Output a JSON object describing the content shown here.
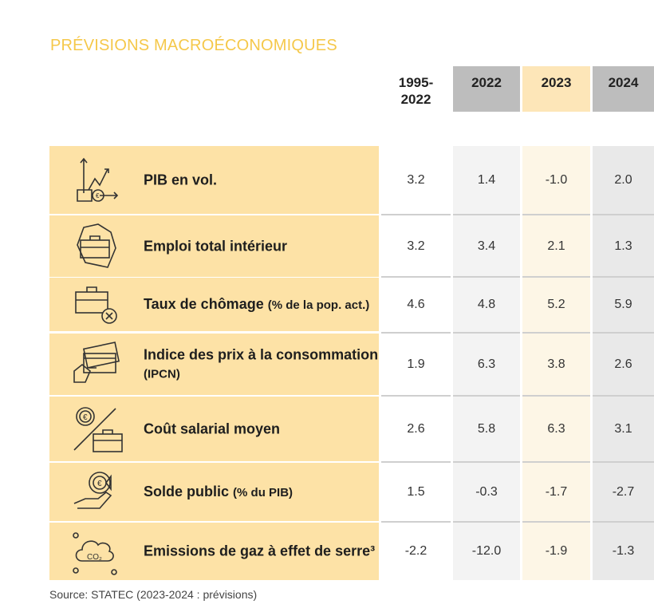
{
  "title": "PRÉVISIONS MACROÉCONOMIQUES",
  "columns": [
    "1995-\n2022",
    "2022",
    "2023",
    "2024"
  ],
  "rows": [
    {
      "icon": "growth-chart-coins-icon",
      "label": "PIB en vol.",
      "sub": "",
      "values": [
        "3.2",
        "1.4",
        "-1.0",
        "2.0"
      ]
    },
    {
      "icon": "briefcase-map-icon",
      "label": "Emploi total intérieur",
      "sub": "",
      "values": [
        "3.2",
        "3.4",
        "2.1",
        "1.3"
      ]
    },
    {
      "icon": "briefcase-cross-icon",
      "label": "Taux de chômage",
      "sub": "(% de la pop. act.)",
      "values": [
        "4.6",
        "4.8",
        "5.2",
        "5.9"
      ]
    },
    {
      "icon": "credit-card-hand-icon",
      "label": "Indice des prix à la consommation",
      "sub": "(IPCN)",
      "values": [
        "1.9",
        "6.3",
        "3.8",
        "2.6"
      ]
    },
    {
      "icon": "euro-briefcase-icon",
      "label": "Coût salarial moyen",
      "sub": "",
      "values": [
        "2.6",
        "5.8",
        "6.3",
        "3.1"
      ]
    },
    {
      "icon": "hand-euro-target-icon",
      "label": "Solde public",
      "sub": "(% du PIB)",
      "values": [
        "1.5",
        "-0.3",
        "-1.7",
        "-2.7"
      ]
    },
    {
      "icon": "co2-cloud-icon",
      "label": "Emissions de gaz à effet de serre³",
      "sub": "",
      "values": [
        "-2.2",
        "-12.0",
        "-1.9",
        "-1.3"
      ]
    }
  ],
  "source": "Source: STATEC (2023-2024 : prévisions)",
  "colors": {
    "title": "#f5c84a",
    "label_bg": "#fde2a6",
    "header_gray": "#bdbdbd",
    "header_2023": "#fde6b8"
  }
}
